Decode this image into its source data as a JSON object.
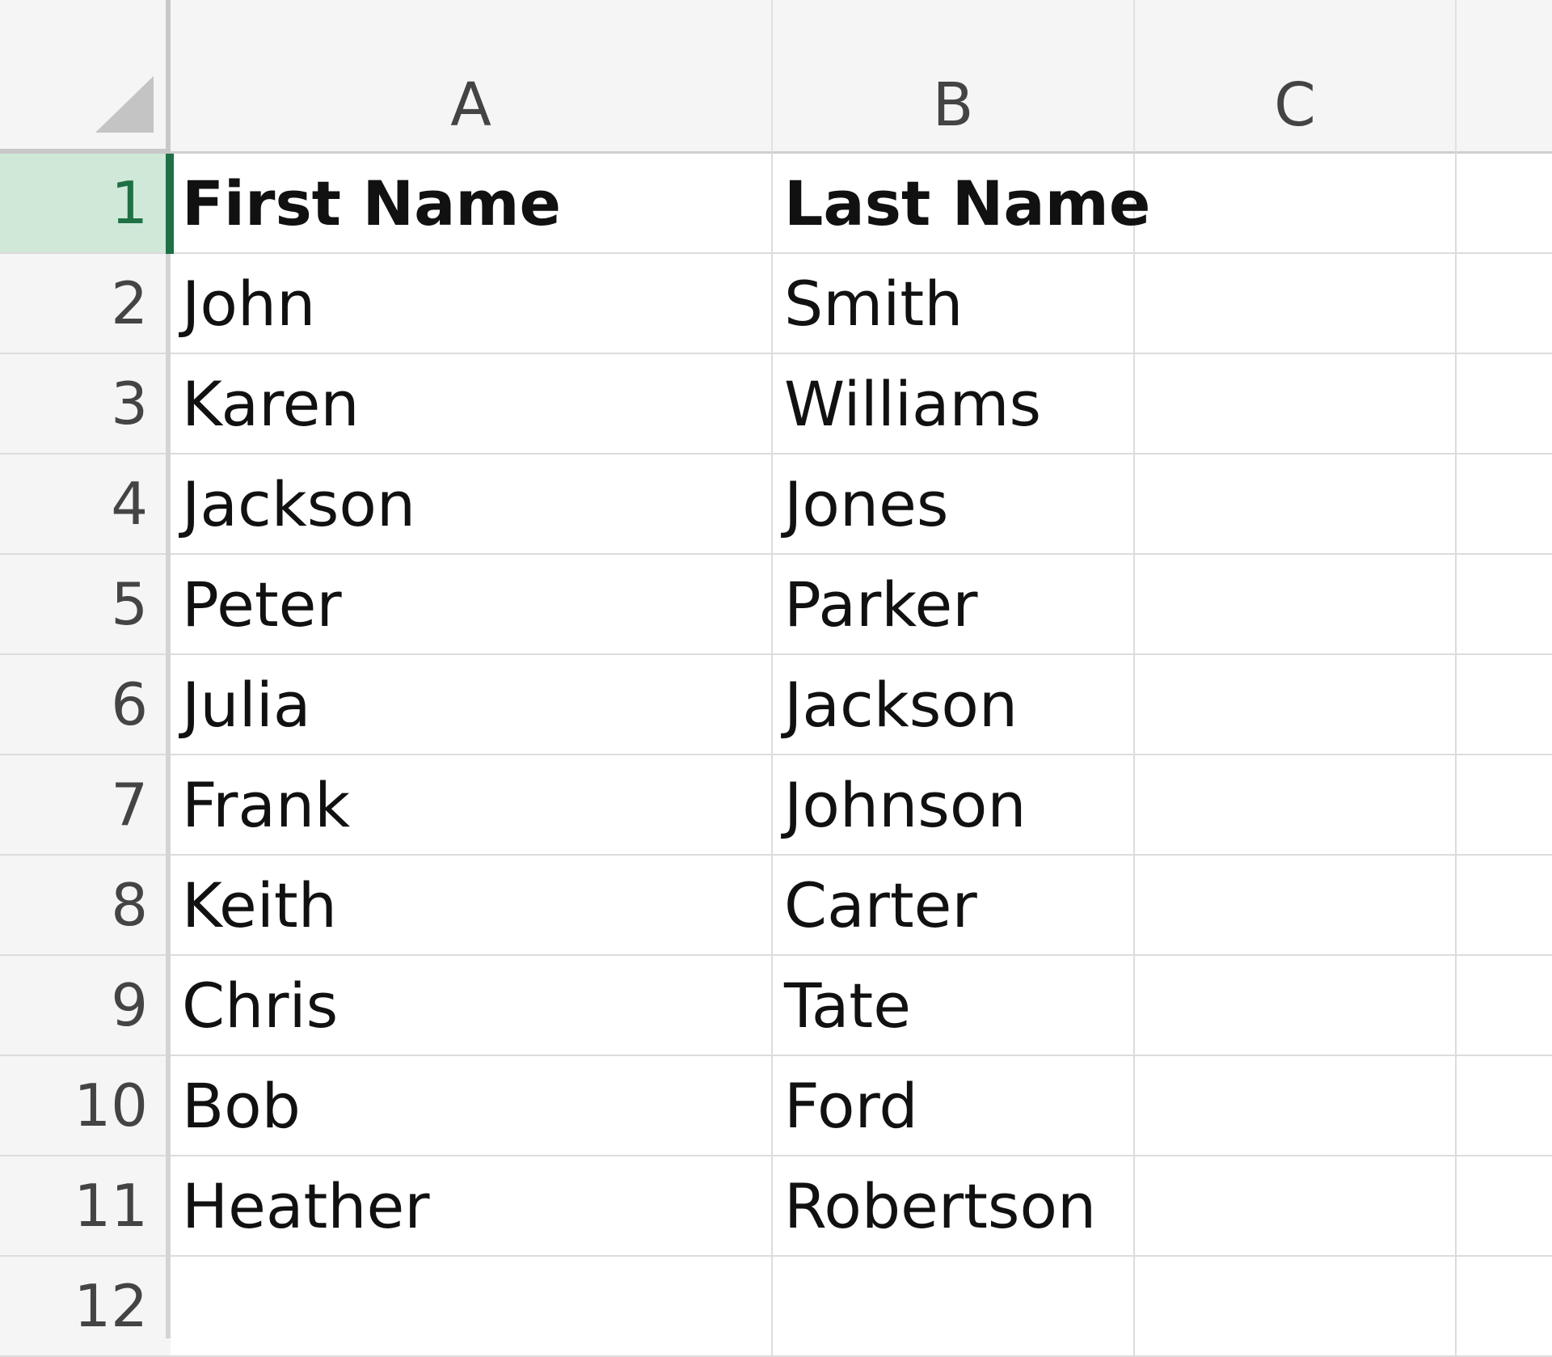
{
  "columns": [
    "A",
    "B",
    "C"
  ],
  "row_numbers": [
    1,
    2,
    3,
    4,
    5,
    6,
    7,
    8,
    9,
    10,
    11,
    12
  ],
  "table": {
    "rows": [
      [
        "First Name",
        "Last Name"
      ],
      [
        "John",
        "Smith"
      ],
      [
        "Karen",
        "Williams"
      ],
      [
        "Jackson",
        "Jones"
      ],
      [
        "Peter",
        "Parker"
      ],
      [
        "Julia",
        "Jackson"
      ],
      [
        "Frank",
        "Johnson"
      ],
      [
        "Keith",
        "Carter"
      ],
      [
        "Chris",
        "Tate"
      ],
      [
        "Bob",
        "Ford"
      ],
      [
        "Heather",
        "Robertson"
      ]
    ]
  }
}
